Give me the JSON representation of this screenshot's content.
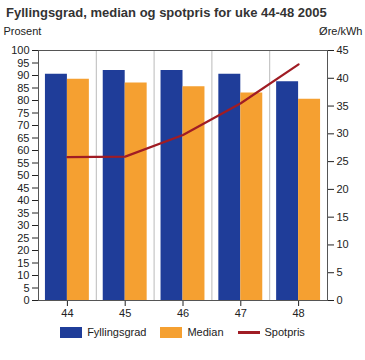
{
  "chart_data": {
    "type": "bar",
    "title": "Fyllingsgrad, median og spotpris for uke 44-48 2005",
    "y_label": "Prosent",
    "y2_label": "Øre/kWh",
    "categories": [
      "44",
      "45",
      "46",
      "47",
      "48"
    ],
    "series": [
      {
        "name": "Fyllingsgrad",
        "color": "#1f3d99",
        "type": "bar",
        "values": [
          90.5,
          92,
          92,
          90.5,
          87.5
        ]
      },
      {
        "name": "Median",
        "color": "#f5a031",
        "type": "bar",
        "values": [
          88.5,
          87,
          85.5,
          83,
          80.5
        ]
      },
      {
        "name": "Spotpris",
        "color": "#a01c24",
        "type": "line",
        "axis": "y2",
        "values": [
          25.8,
          25.9,
          29.8,
          35.5,
          42.5
        ]
      }
    ],
    "ylim": [
      0,
      100
    ],
    "yticks": [
      0,
      5,
      10,
      15,
      20,
      25,
      30,
      35,
      40,
      45,
      50,
      55,
      60,
      65,
      70,
      75,
      80,
      85,
      90,
      95,
      100
    ],
    "y2lim": [
      0,
      45
    ],
    "y2ticks": [
      0,
      5,
      10,
      15,
      20,
      25,
      30,
      35,
      40,
      45
    ],
    "grid": false,
    "legend": "bottom"
  }
}
